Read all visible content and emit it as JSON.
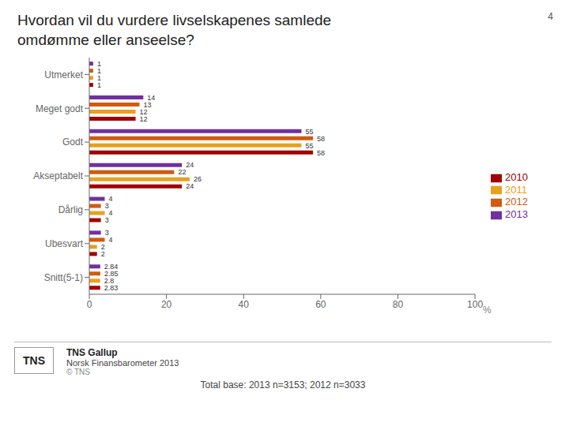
{
  "chart_data": {
    "type": "bar",
    "orientation": "horizontal",
    "title": "Hvordan vil du vurdere livselskapenes samlede\nomdømme eller anseelse?",
    "xlabel": "%",
    "categories": [
      "Utmerket",
      "Meget godt",
      "Godt",
      "Akseptabelt",
      "Dårlig",
      "Ubesvart",
      "Snitt(5-1)"
    ],
    "series": [
      {
        "name": "2013",
        "color": "#7030a0",
        "values": [
          1,
          14,
          55,
          24,
          4,
          3,
          2.84
        ]
      },
      {
        "name": "2012",
        "color": "#d05a10",
        "values": [
          1,
          13,
          58,
          22,
          3,
          4,
          2.85
        ]
      },
      {
        "name": "2011",
        "color": "#e8a020",
        "values": [
          1,
          12,
          55,
          26,
          4,
          2,
          2.8
        ]
      },
      {
        "name": "2010",
        "color": "#a00000",
        "values": [
          1,
          12,
          58,
          24,
          3,
          2,
          2.83
        ]
      }
    ],
    "xlim": [
      0,
      100
    ],
    "xticks": [
      0,
      20,
      40,
      60,
      80,
      100
    ],
    "data_labels": true,
    "grid": false,
    "legend": "right",
    "annotations": [
      "4",
      "TNS",
      "TNS Gallup",
      "Norsk Finansbarometer 2013",
      "© TNS",
      "Total base: 2013 n=3153; 2012 n=3033"
    ]
  }
}
